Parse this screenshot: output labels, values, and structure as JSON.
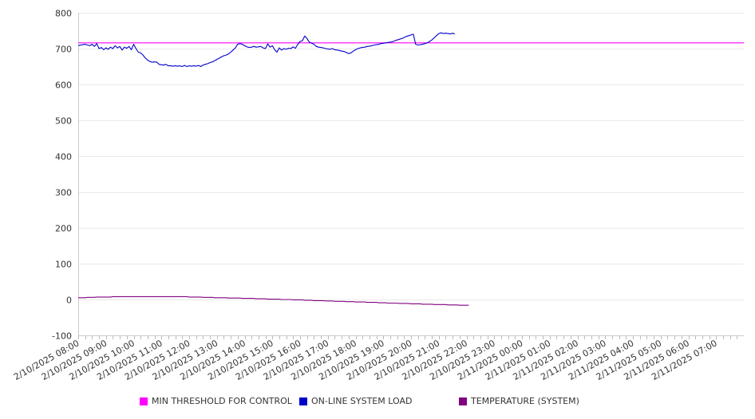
{
  "chart_data": {
    "type": "line",
    "title": "",
    "xlabel": "",
    "ylabel": "",
    "ylim": [
      -100,
      800
    ],
    "yticks": [
      -100,
      0,
      100,
      200,
      300,
      400,
      500,
      600,
      700,
      800
    ],
    "grid": true,
    "legend_position": "bottom",
    "x_range": [
      "2/10/2025 08:00",
      "2/11/2025 07:50"
    ],
    "x_interval_minutes": 5,
    "x_tick_labels": [
      "2/10/2025 08:00",
      "2/10/2025 09:00",
      "2/10/2025 10:00",
      "2/10/2025 11:00",
      "2/10/2025 12:00",
      "2/10/2025 13:00",
      "2/10/2025 14:00",
      "2/10/2025 15:00",
      "2/10/2025 16:00",
      "2/10/2025 17:00",
      "2/10/2025 18:00",
      "2/10/2025 19:00",
      "2/10/2025 20:00",
      "2/10/2025 21:00",
      "2/10/2025 22:00",
      "2/10/2025 23:00",
      "2/11/2025 00:00",
      "2/11/2025 01:00",
      "2/11/2025 02:00",
      "2/11/2025 03:00",
      "2/11/2025 04:00",
      "2/11/2025 05:00",
      "2/11/2025 06:00",
      "2/11/2025 07:00"
    ],
    "series": [
      {
        "name": "MIN THRESHOLD FOR CONTROL",
        "color": "#FF00FF",
        "values": [
          716,
          716
        ]
      },
      {
        "name": "ON-LINE SYSTEM LOAD",
        "color": "#0000CC",
        "values": [
          708,
          710,
          711,
          712,
          710,
          708,
          712,
          706,
          714,
          700,
          703,
          697,
          702,
          698,
          704,
          700,
          708,
          702,
          706,
          696,
          704,
          701,
          706,
          697,
          712,
          700,
          690,
          688,
          682,
          674,
          668,
          664,
          662,
          663,
          662,
          656,
          655,
          654,
          656,
          652,
          652,
          651,
          652,
          651,
          652,
          650,
          653,
          650,
          652,
          651,
          652,
          651,
          653,
          650,
          654,
          656,
          658,
          661,
          663,
          666,
          670,
          673,
          677,
          680,
          682,
          685,
          690,
          696,
          702,
          712,
          714,
          712,
          708,
          705,
          703,
          704,
          706,
          704,
          705,
          706,
          702,
          700,
          713,
          704,
          708,
          697,
          690,
          702,
          696,
          700,
          698,
          701,
          700,
          705,
          701,
          712,
          720,
          722,
          735,
          728,
          718,
          715,
          712,
          706,
          704,
          703,
          702,
          700,
          699,
          698,
          700,
          697,
          696,
          695,
          693,
          692,
          689,
          686,
          688,
          693,
          697,
          700,
          702,
          703,
          704,
          706,
          707,
          708,
          710,
          711,
          712,
          714,
          715,
          716,
          717,
          718,
          719,
          722,
          724,
          726,
          728,
          731,
          734,
          736,
          738,
          740,
          712,
          710,
          711,
          712,
          714,
          716,
          720,
          724,
          730,
          736,
          742,
          744,
          742,
          743,
          742,
          741,
          743,
          741
        ]
      },
      {
        "name": "TEMPERATURE (SYSTEM)",
        "color": "#800080",
        "values": [
          5,
          5,
          5,
          5,
          6,
          6,
          6,
          6,
          7,
          7,
          7,
          7,
          7,
          7,
          7,
          8,
          8,
          8,
          8,
          8,
          8,
          8,
          8,
          8,
          8,
          8,
          8,
          8,
          8,
          8,
          8,
          8,
          8,
          8,
          8,
          8,
          8,
          8,
          8,
          8,
          8,
          8,
          8,
          8,
          8,
          8,
          8,
          8,
          7,
          7,
          7,
          7,
          7,
          7,
          6,
          6,
          6,
          6,
          6,
          5,
          5,
          5,
          5,
          5,
          5,
          4,
          4,
          4,
          4,
          4,
          4,
          3,
          3,
          3,
          3,
          3,
          3,
          2,
          2,
          2,
          2,
          2,
          1,
          1,
          1,
          1,
          1,
          1,
          0,
          0,
          0,
          0,
          0,
          -1,
          -1,
          -1,
          -1,
          -1,
          -2,
          -2,
          -2,
          -2,
          -3,
          -3,
          -3,
          -3,
          -3,
          -4,
          -4,
          -4,
          -4,
          -5,
          -5,
          -5,
          -5,
          -5,
          -6,
          -6,
          -6,
          -6,
          -7,
          -7,
          -7,
          -7,
          -7,
          -8,
          -8,
          -8,
          -8,
          -8,
          -9,
          -9,
          -9,
          -9,
          -10,
          -10,
          -10,
          -10,
          -10,
          -11,
          -11,
          -11,
          -11,
          -11,
          -12,
          -12,
          -12,
          -12,
          -12,
          -13,
          -13,
          -13,
          -13,
          -13,
          -14,
          -14,
          -14,
          -14,
          -14,
          -14,
          -15,
          -15,
          -15,
          -15,
          -15,
          -16,
          -16,
          -16,
          -16,
          -16
        ]
      }
    ]
  }
}
